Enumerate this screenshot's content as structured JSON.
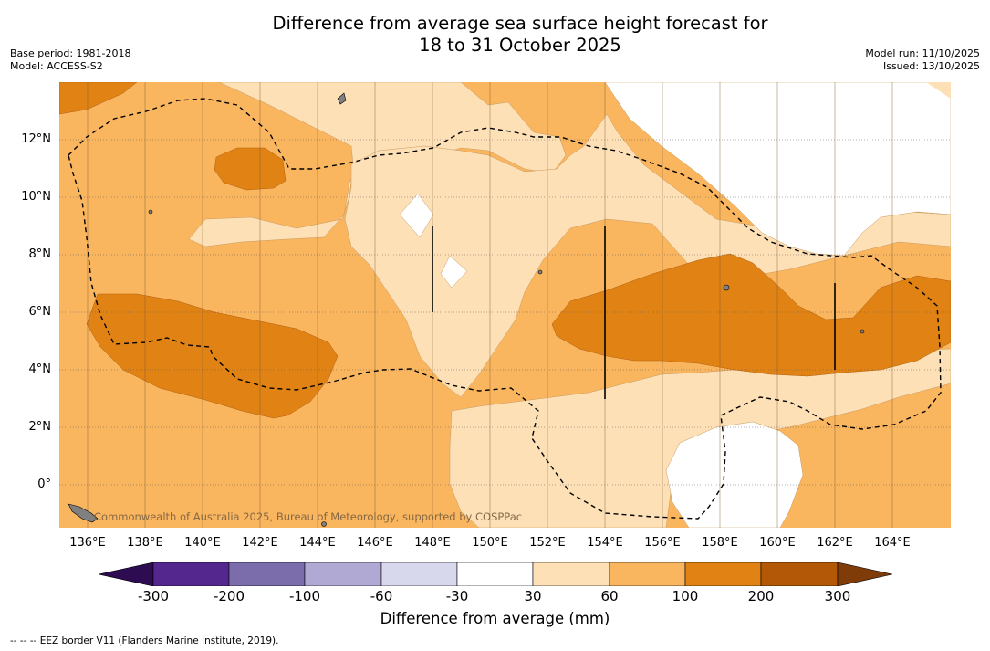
{
  "title_line1": "Difference from average sea surface height forecast for",
  "title_line2": "18 to 31 October 2025",
  "base_period": "Base period: 1981-2018",
  "model": "Model: ACCESS-S2",
  "model_run": "Model run: 11/10/2025",
  "issued": "Issued: 13/10/2025",
  "credit": "Commonwealth of Australia 2025, Bureau of Meteorology, supported by COSPPac",
  "lat_labels": [
    "12°N",
    "10°N",
    "8°N",
    "6°N",
    "4°N",
    "2°N",
    "0°"
  ],
  "lon_labels": [
    "136°E",
    "138°E",
    "140°E",
    "142°E",
    "144°E",
    "146°E",
    "148°E",
    "150°E",
    "152°E",
    "154°E",
    "156°E",
    "158°E",
    "160°E",
    "162°E",
    "164°E"
  ],
  "colorbar": {
    "ticks": [
      "-300",
      "-200",
      "-100",
      "-60",
      "-30",
      "30",
      "60",
      "100",
      "200",
      "300"
    ],
    "colors": [
      "#2d0c52",
      "#54278f",
      "#7b6cab",
      "#b0a9d3",
      "#d8d8ec",
      "#ffffff",
      "#fde0b6",
      "#fab55f",
      "#e08214",
      "#b35806",
      "#7f3b08"
    ],
    "title": "Difference from average (mm)"
  },
  "footer": "-- -- -- EEZ border V11 (Flanders Marine Institute, 2019).",
  "map_colors": {
    "band_30_60": "#fde0b6",
    "band_60_100": "#fab55f",
    "band_100_200": "#e08214",
    "band_200_300": "#b35806",
    "land": "#808080"
  }
}
